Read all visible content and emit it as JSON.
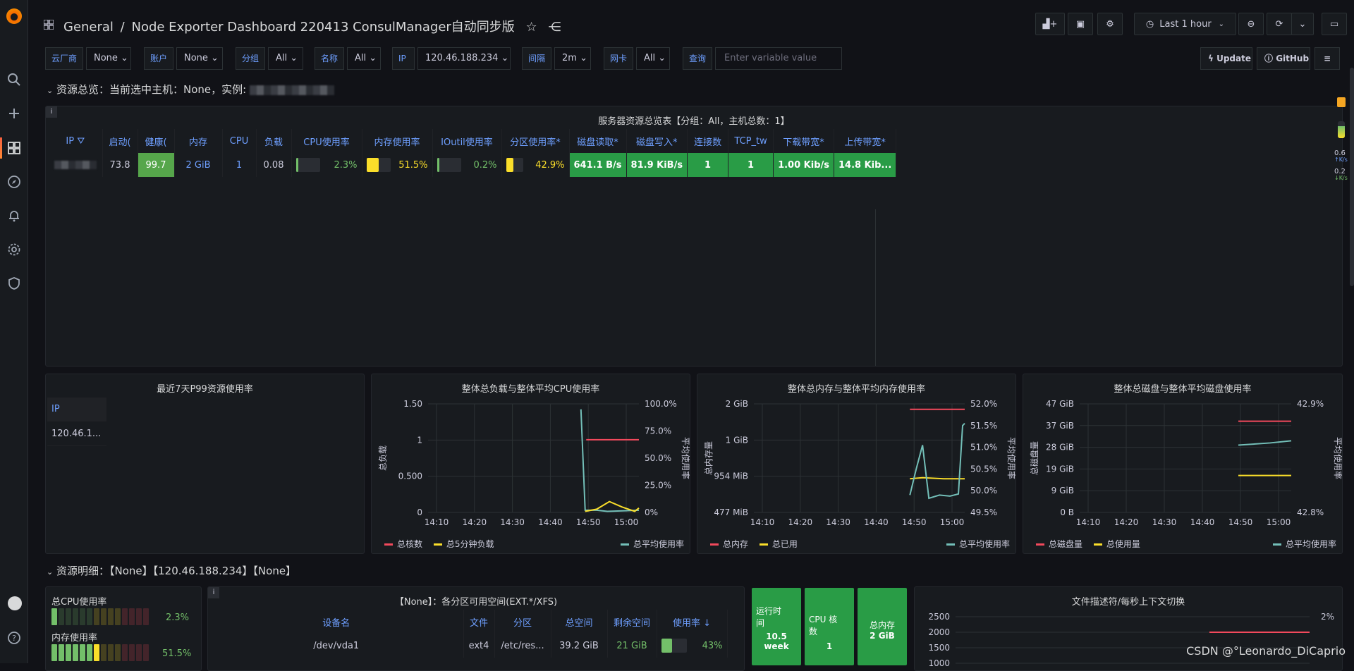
{
  "breadcrumb": {
    "folder": "General",
    "separator": "/",
    "dashboard": "Node Exporter Dashboard 220413 ConsulManager自动同步版"
  },
  "toolbar": {
    "time_range": "Last 1 hour"
  },
  "variables": [
    {
      "label": "云厂商",
      "value": "None"
    },
    {
      "label": "账户",
      "value": "None"
    },
    {
      "label": "分组",
      "value": "All"
    },
    {
      "label": "名称",
      "value": "All"
    },
    {
      "label": "IP",
      "value": "120.46.188.234"
    },
    {
      "label": "间隔",
      "value": "2m"
    },
    {
      "label": "网卡",
      "value": "All"
    }
  ],
  "query": {
    "label": "查询",
    "placeholder": "Enter variable value"
  },
  "links": {
    "update": "Update",
    "github": "GitHub"
  },
  "row1": {
    "title": "资源总览：当前选中主机：None，实例:"
  },
  "overview_table": {
    "title": "服务器资源总览表【分组：All，主机总数：1】",
    "headers": [
      "IP",
      "启动(",
      "健康(",
      "内存",
      "CPU",
      "负载",
      "CPU使用率",
      "内存使用率",
      "IOutil使用率",
      "分区使用率*",
      "磁盘读取*",
      "磁盘写入*",
      "连接数",
      "TCP_tw",
      "下载带宽*",
      "上传带宽*"
    ],
    "row": {
      "uptime": "73.8",
      "health": "99.7",
      "mem": "2 GiB",
      "cpu": "1",
      "load": "0.08",
      "cpu_pct": "2.3%",
      "mem_pct": "51.5%",
      "io_pct": "0.2%",
      "part_pct": "42.9%",
      "disk_read": "641.1 B/s",
      "disk_write": "81.9 KiB/s",
      "conn": "1",
      "tcp_tw": "1",
      "down": "1.00 Kib/s",
      "up": "14.8 Kib..."
    },
    "bars": {
      "cpu": 0.023,
      "mem": 0.515,
      "io": 0.002,
      "part": 0.429
    }
  },
  "side_stats": {
    "v1": "0.6",
    "u1": "K/s",
    "v2": "0.2",
    "u2": "K/s"
  },
  "p99": {
    "title": "最近7天P99资源使用率",
    "col": "IP",
    "value": "120.46.1..."
  },
  "charts": {
    "load_cpu": {
      "title": "整体总负载与整体平均CPU使用率",
      "left_ticks": [
        "1.50",
        "1",
        "0.500",
        "0"
      ],
      "right_ticks": [
        "100.0%",
        "75.0%",
        "50.0%",
        "25.0%",
        "0%"
      ],
      "x_ticks": [
        "14:10",
        "14:20",
        "14:30",
        "14:40",
        "14:50",
        "15:00"
      ],
      "ylabel_left": "总负载",
      "ylabel_right": "平均使用率",
      "legend": [
        {
          "name": "总核数",
          "color": "#f2495c"
        },
        {
          "name": "总5分钟负载",
          "color": "#fade2a"
        },
        {
          "name": "总平均使用率",
          "color": "#73bfb8"
        }
      ]
    },
    "mem": {
      "title": "整体总内存与整体平均内存使用率",
      "left_ticks": [
        "2 GiB",
        "1 GiB",
        "954 MiB",
        "477 MiB"
      ],
      "right_ticks": [
        "52.0%",
        "51.5%",
        "51.0%",
        "50.5%",
        "50.0%",
        "49.5%"
      ],
      "x_ticks": [
        "14:10",
        "14:20",
        "14:30",
        "14:40",
        "14:50",
        "15:00"
      ],
      "ylabel_left": "总内存量",
      "ylabel_right": "平均使用率",
      "legend": [
        {
          "name": "总内存",
          "color": "#f2495c"
        },
        {
          "name": "总已用",
          "color": "#fade2a"
        },
        {
          "name": "总平均使用率",
          "color": "#73bfb8"
        }
      ]
    },
    "disk": {
      "title": "整体总磁盘与整体平均磁盘使用率",
      "left_ticks": [
        "47 GiB",
        "37 GiB",
        "28 GiB",
        "19 GiB",
        "9 GiB",
        "0 B"
      ],
      "right_ticks": [
        "42.9%",
        "42.8%"
      ],
      "x_ticks": [
        "14:10",
        "14:20",
        "14:30",
        "14:40",
        "14:50",
        "15:00"
      ],
      "ylabel_left": "总磁盘量",
      "ylabel_right": "平均使用率",
      "legend": [
        {
          "name": "总磁盘量",
          "color": "#f2495c"
        },
        {
          "name": "总使用量",
          "color": "#fade2a"
        },
        {
          "name": "总平均使用率",
          "color": "#73bfb8"
        }
      ]
    }
  },
  "row2": {
    "title": "资源明细：【None】【120.46.188.234】【None】"
  },
  "gauges": {
    "cpu_label": "总CPU使用率",
    "cpu_val": "2.3%",
    "mem_label": "内存使用率",
    "mem_val": "51.5%",
    "cpu_frac": 0.023,
    "mem_frac": 0.515
  },
  "partition_table": {
    "title": "【None】：各分区可用空间(EXT.*/XFS)",
    "headers": [
      "设备名",
      "文件",
      "分区",
      "总空间",
      "剩余空间",
      "使用率"
    ],
    "row": {
      "dev": "/dev/vda1",
      "fs": "ext4",
      "mount": "/etc/res...",
      "total": "39.2 GiB",
      "free": "21 GiB",
      "pct": "43%"
    },
    "pct_frac": 0.43
  },
  "stats": [
    {
      "label": "运行时间",
      "value": "10.5 week"
    },
    {
      "label": "CPU 核数",
      "value": "1"
    },
    {
      "label": "总内存",
      "value": "2 GiB"
    }
  ],
  "fd_chart": {
    "title": "文件描述符/每秒上下文切换",
    "left_ticks": [
      "2500",
      "2000",
      "1500",
      "1000"
    ],
    "right_tick": "2%"
  },
  "watermark": "CSDN @°Leonardo_DiCaprio"
}
